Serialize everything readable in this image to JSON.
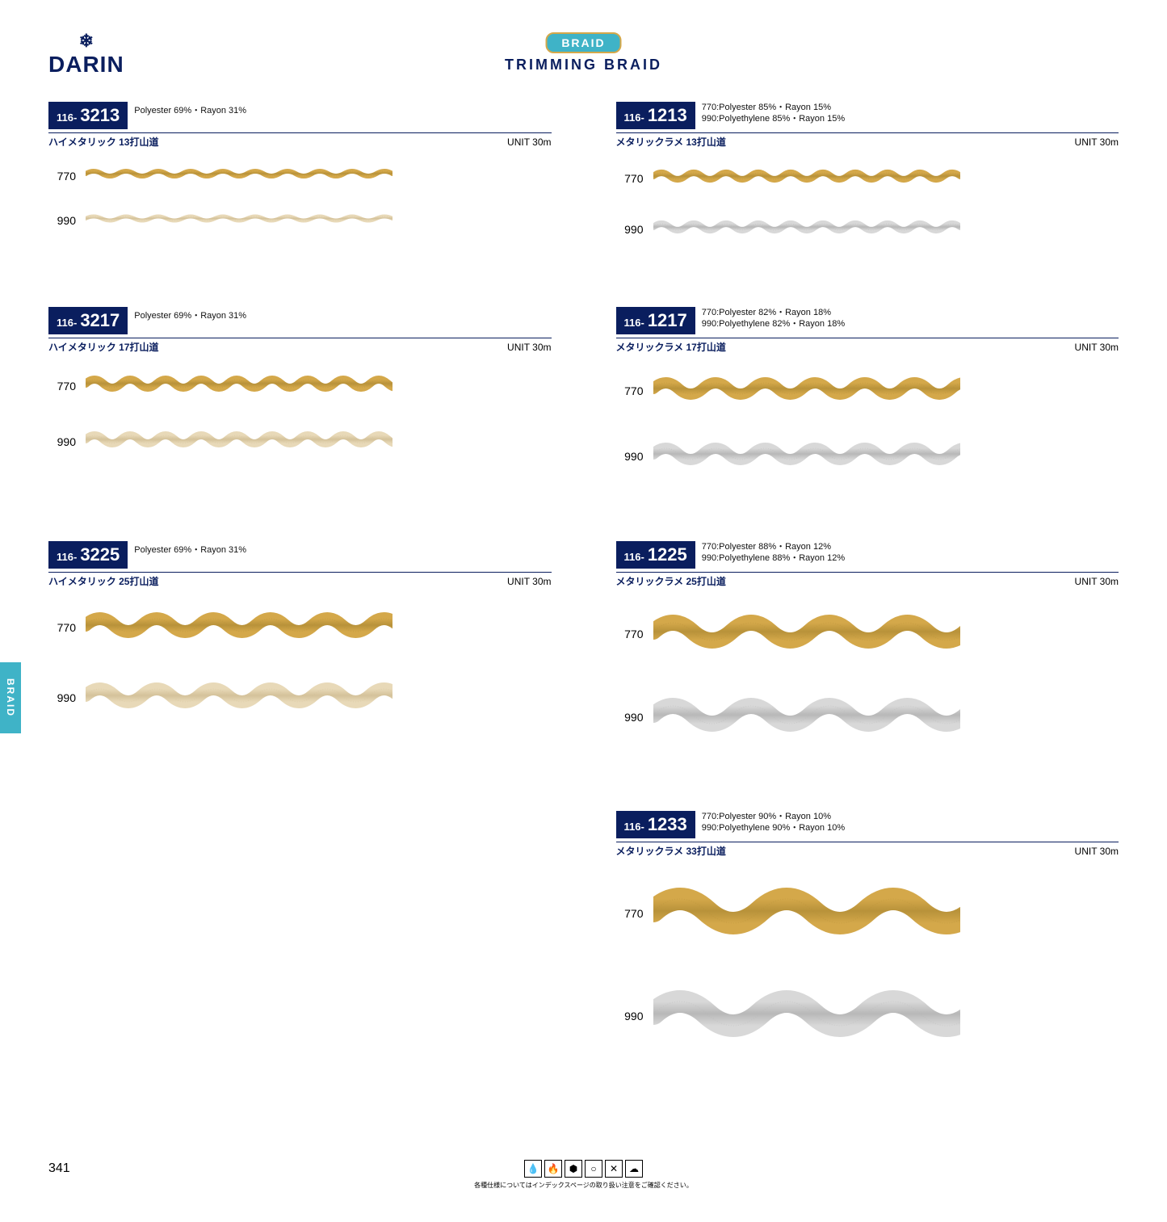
{
  "brand": "DARIN",
  "category_pill": "BRAID",
  "page_title": "TRIMMING  BRAID",
  "side_tab": "BRAID",
  "page_number": "341",
  "footer_note": "各種仕様についてはインデックスページの取り扱い注意をご確認ください。",
  "gold_light": "#d4a84a",
  "gold_dark": "#b8923a",
  "silver_light": "#d8d8d8",
  "silver_dark": "#b8b8b8",
  "champagne_light": "#e8d9b8",
  "champagne_dark": "#d4c29a",
  "products": [
    {
      "code_prefix": "116-",
      "code_number": "3213",
      "spec_lines": [
        "Polyester  69%・Rayon  31%"
      ],
      "jp": "ハイメタリック 13打山道",
      "unit": "UNIT  30m",
      "swatches": [
        {
          "label": "770",
          "color": "gold",
          "amp": 6,
          "stroke": 6
        },
        {
          "label": "990",
          "color": "champagne",
          "amp": 5,
          "stroke": 5
        }
      ]
    },
    {
      "code_prefix": "116-",
      "code_number": "1213",
      "spec_lines": [
        "770:Polyester  85%・Rayon  15%",
        "990:Polyethylene  85%・Rayon  15%"
      ],
      "jp": "メタリックラメ 13打山道",
      "unit": "UNIT  30m",
      "swatches": [
        {
          "label": "770",
          "color": "gold",
          "amp": 8,
          "stroke": 8
        },
        {
          "label": "990",
          "color": "silver",
          "amp": 8,
          "stroke": 8
        }
      ]
    },
    {
      "code_prefix": "116-",
      "code_number": "3217",
      "spec_lines": [
        "Polyester  69%・Rayon  31%"
      ],
      "jp": "ハイメタリック 17打山道",
      "unit": "UNIT  30m",
      "swatches": [
        {
          "label": "770",
          "color": "gold",
          "amp": 10,
          "stroke": 10
        },
        {
          "label": "990",
          "color": "champagne",
          "amp": 10,
          "stroke": 10
        }
      ]
    },
    {
      "code_prefix": "116-",
      "code_number": "1217",
      "spec_lines": [
        "770:Polyester  82%・Rayon  18%",
        "990:Polyethylene  82%・Rayon  18%"
      ],
      "jp": "メタリックラメ 17打山道",
      "unit": "UNIT  30m",
      "swatches": [
        {
          "label": "770",
          "color": "gold",
          "amp": 14,
          "stroke": 14
        },
        {
          "label": "990",
          "color": "silver",
          "amp": 14,
          "stroke": 14
        }
      ]
    },
    {
      "code_prefix": "116-",
      "code_number": "3225",
      "spec_lines": [
        "Polyester  69%・Rayon  31%"
      ],
      "jp": "ハイメタリック 25打山道",
      "unit": "UNIT  30m",
      "swatches": [
        {
          "label": "770",
          "color": "gold",
          "amp": 16,
          "stroke": 16
        },
        {
          "label": "990",
          "color": "champagne",
          "amp": 16,
          "stroke": 16
        }
      ]
    },
    {
      "code_prefix": "116-",
      "code_number": "1225",
      "spec_lines": [
        "770:Polyester  88%・Rayon  12%",
        "990:Polyethylene  88%・Rayon  12%"
      ],
      "jp": "メタリックラメ 25打山道",
      "unit": "UNIT  30m",
      "swatches": [
        {
          "label": "770",
          "color": "gold",
          "amp": 22,
          "stroke": 20
        },
        {
          "label": "990",
          "color": "silver",
          "amp": 22,
          "stroke": 20
        }
      ]
    },
    {
      "code_prefix": "116-",
      "code_number": "1233",
      "spec_lines": [
        "770:Polyester  90%・Rayon  10%",
        "990:Polyethylene  90%・Rayon  10%"
      ],
      "jp": "メタリックラメ 33打山道",
      "unit": "UNIT  30m",
      "swatches": [
        {
          "label": "770",
          "color": "gold",
          "amp": 30,
          "stroke": 28
        },
        {
          "label": "990",
          "color": "silver",
          "amp": 30,
          "stroke": 28
        }
      ]
    }
  ]
}
